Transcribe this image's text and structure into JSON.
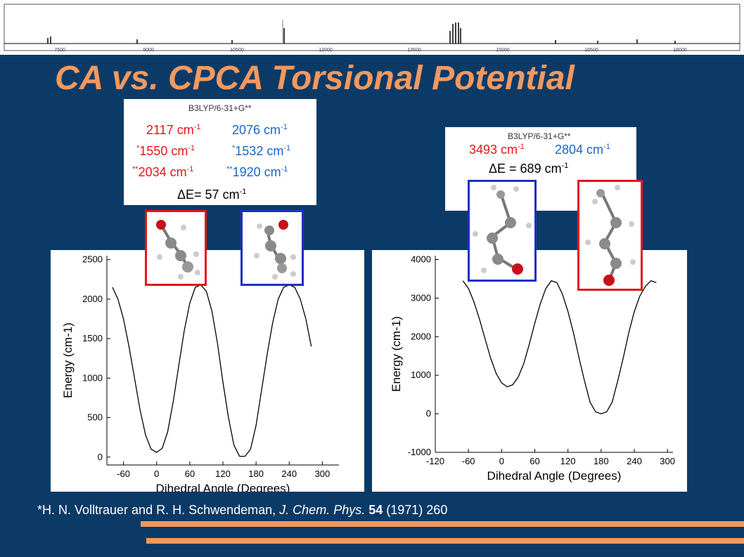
{
  "slide_title": "CA vs. CPCA Torsional Potential",
  "spectrum": {
    "tick_labels": [
      "7500",
      "9000",
      "10500",
      "12000",
      "13500",
      "15000",
      "16500",
      "18000"
    ]
  },
  "left_box": {
    "method": "B3LYP/6-31+G**",
    "rows": [
      {
        "mark": "",
        "red": "2117 cm",
        "blue": "2076 cm",
        "blue_mark": ""
      },
      {
        "mark": "*",
        "red": "1550 cm",
        "blue": "1532 cm",
        "blue_mark": "*"
      },
      {
        "mark": "**",
        "red": "2034 cm",
        "blue": "1920 cm",
        "blue_mark": "**"
      }
    ],
    "delta": "ΔE= 57 cm",
    "exp": "-1"
  },
  "right_box": {
    "method": "B3LYP/6-31+G**",
    "red": "3493 cm",
    "blue": "2804 cm",
    "delta": "ΔE = 689 cm",
    "exp": "-1"
  },
  "reference": {
    "pre": "*H. N. Volltrauer and R. H. Schwendeman, ",
    "journal": "J. Chem. Phys.",
    "volume": "54",
    "post": " (1971) 260"
  },
  "chart_data": [
    {
      "type": "line",
      "xlabel": "Dihedral Angle (Degrees)",
      "ylabel": "Energy (cm-1)",
      "xlim": [
        -90,
        330
      ],
      "ylim": [
        -100,
        2550
      ],
      "xticks": [
        -60,
        0,
        60,
        120,
        180,
        240,
        300
      ],
      "yticks": [
        0,
        500,
        1000,
        1500,
        2000,
        2500
      ],
      "series": [
        {
          "x": [
            -80,
            -70,
            -60,
            -50,
            -40,
            -30,
            -20,
            -10,
            0,
            10,
            20,
            30,
            40,
            50,
            60,
            70,
            80,
            90,
            100,
            110,
            120,
            130,
            140,
            150,
            160,
            170,
            180,
            190,
            200,
            210,
            220,
            230,
            240,
            250,
            260,
            270,
            280
          ],
          "values": [
            2150,
            2000,
            1750,
            1400,
            1000,
            600,
            280,
            100,
            60,
            110,
            320,
            700,
            1150,
            1600,
            1950,
            2150,
            2180,
            2100,
            1850,
            1450,
            950,
            500,
            150,
            10,
            10,
            100,
            400,
            850,
            1300,
            1700,
            2000,
            2150,
            2180,
            2150,
            2000,
            1750,
            1400
          ]
        }
      ]
    },
    {
      "type": "line",
      "xlabel": "Dihedral Angle (Degrees)",
      "ylabel": "Energy (cm-1)",
      "xlim": [
        -120,
        310
      ],
      "ylim": [
        -1000,
        4100
      ],
      "xticks": [
        -120,
        -60,
        0,
        60,
        120,
        180,
        240,
        300
      ],
      "yticks": [
        -1000,
        0,
        1000,
        2000,
        3000,
        4000
      ],
      "series": [
        {
          "x": [
            -70,
            -60,
            -50,
            -40,
            -30,
            -20,
            -10,
            0,
            10,
            20,
            30,
            40,
            50,
            60,
            70,
            80,
            90,
            100,
            110,
            120,
            130,
            140,
            150,
            160,
            170,
            180,
            190,
            200,
            210,
            220,
            230,
            240,
            250,
            260,
            270,
            280
          ],
          "values": [
            3450,
            3250,
            2900,
            2450,
            1950,
            1450,
            1050,
            800,
            700,
            750,
            950,
            1300,
            1800,
            2350,
            2850,
            3250,
            3450,
            3400,
            3100,
            2650,
            2100,
            1450,
            850,
            300,
            50,
            0,
            50,
            300,
            850,
            1450,
            2100,
            2650,
            3050,
            3300,
            3450,
            3400
          ]
        }
      ]
    }
  ]
}
